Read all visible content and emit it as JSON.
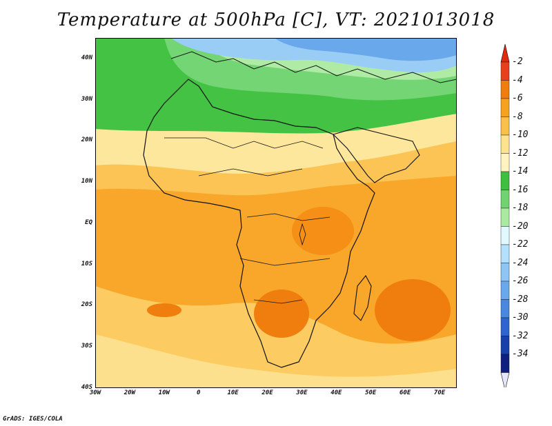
{
  "title": "Temperature at 500hPa [C], VT: 2021013018",
  "credit": "GrADS: IGES/COLA",
  "map": {
    "lon_range": [
      -30,
      75
    ],
    "lat_range": [
      -40,
      45
    ],
    "lat_ticks": [
      "40N",
      "30N",
      "20N",
      "10N",
      "EQ",
      "10S",
      "20S",
      "30S",
      "40S"
    ],
    "lon_ticks": [
      "30W",
      "20W",
      "10W",
      "0",
      "10E",
      "20E",
      "30E",
      "40E",
      "50E",
      "60E",
      "70E"
    ]
  },
  "legend": {
    "labels": [
      "-2",
      "-4",
      "-6",
      "-8",
      "-10",
      "-12",
      "-14",
      "-16",
      "-18",
      "-20",
      "-22",
      "-24",
      "-26",
      "-28",
      "-30",
      "-32",
      "-34"
    ],
    "colors": [
      "#e8401c",
      "#f07e0e",
      "#f7a21e",
      "#f9c04a",
      "#fde38c",
      "#fff4c0",
      "#3fbf3f",
      "#6fd36f",
      "#a9eaa0",
      "#e1f8ff",
      "#b4e0ff",
      "#8ec5f5",
      "#6aa8ec",
      "#4a87df",
      "#2e64cf",
      "#1840ab",
      "#0e1f80"
    ],
    "top_arrow_color": "#e02a10",
    "bottom_arrow_color": "#e6e6fb"
  }
}
